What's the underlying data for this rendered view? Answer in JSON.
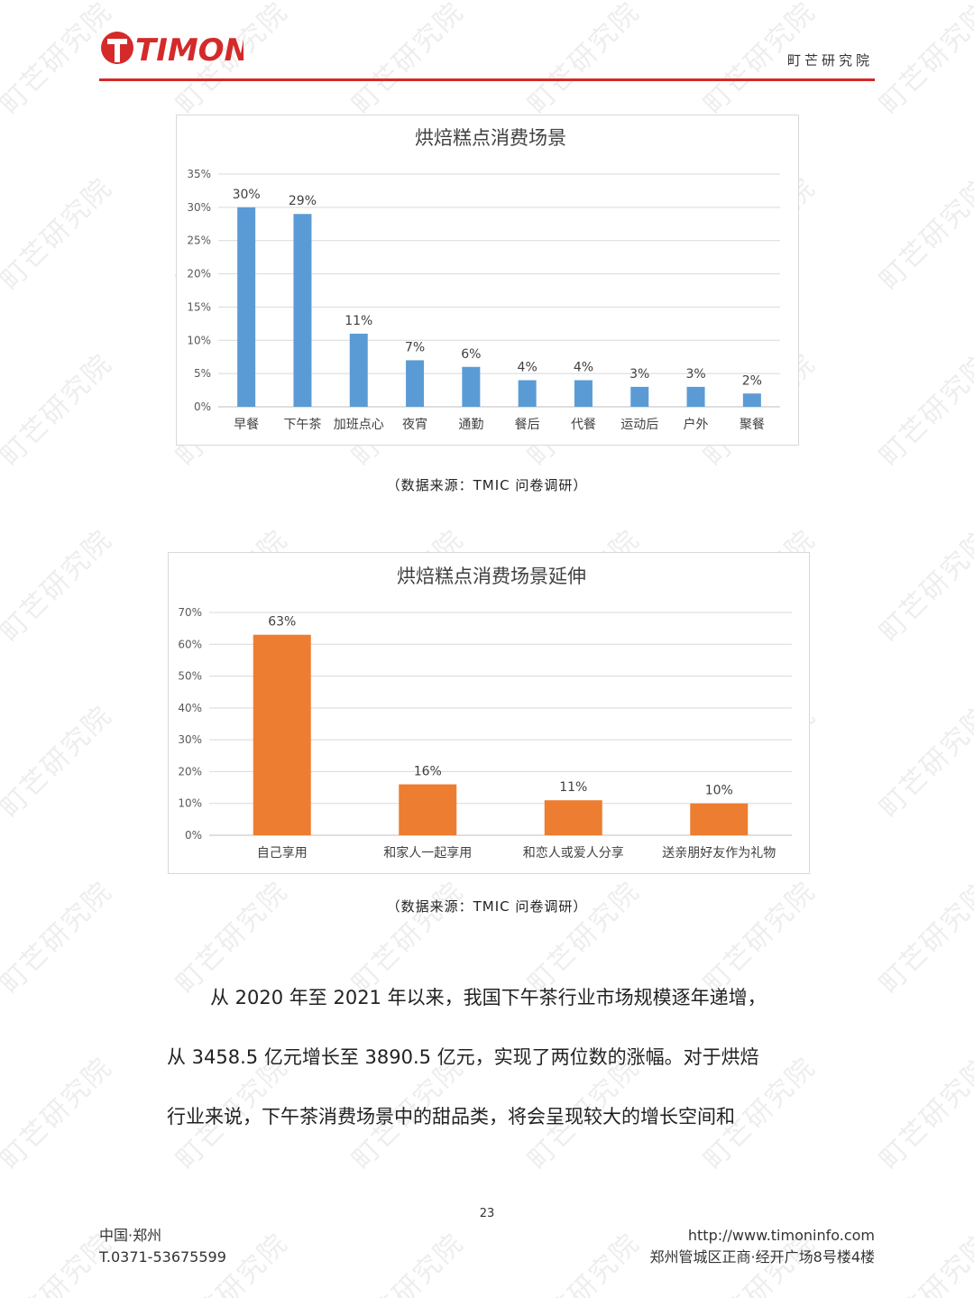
{
  "header": {
    "logo_text": "TIMON",
    "org_name": "町芒研究院",
    "brand_color": "#d42a2a"
  },
  "watermark_text": "町芒研究院",
  "chart_data": [
    {
      "type": "bar",
      "title": "烘焙糕点消费场景",
      "categories": [
        "早餐",
        "下午茶",
        "加班点心",
        "夜宵",
        "通勤",
        "餐后",
        "代餐",
        "运动后",
        "户外",
        "聚餐"
      ],
      "values": [
        30,
        29,
        11,
        7,
        6,
        4,
        4,
        3,
        3,
        2
      ],
      "value_labels": [
        "30%",
        "29%",
        "11%",
        "7%",
        "6%",
        "4%",
        "4%",
        "3%",
        "3%",
        "2%"
      ],
      "ylim": [
        0,
        35
      ],
      "yticks": [
        "0%",
        "5%",
        "10%",
        "15%",
        "20%",
        "25%",
        "30%",
        "35%"
      ],
      "grid": true,
      "color": "#5b9bd5"
    },
    {
      "type": "bar",
      "title": "烘焙糕点消费场景延伸",
      "categories": [
        "自己享用",
        "和家人一起享用",
        "和恋人或爱人分享",
        "送亲朋好友作为礼物"
      ],
      "values": [
        63,
        16,
        11,
        10
      ],
      "value_labels": [
        "63%",
        "16%",
        "11%",
        "10%"
      ],
      "ylim": [
        0,
        70
      ],
      "yticks": [
        "0%",
        "10%",
        "20%",
        "30%",
        "40%",
        "50%",
        "60%",
        "70%"
      ],
      "grid": true,
      "color": "#ed7d31"
    }
  ],
  "sources": {
    "chart1": "（数据来源：TMIC 问卷调研）",
    "chart2": "（数据来源：TMIC 问卷调研）"
  },
  "body": {
    "line1": "从 2020 年至 2021 年以来，我国下午茶行业市场规模逐年递增，",
    "line2": "从 3458.5 亿元增长至 3890.5 亿元，实现了两位数的涨幅。对于烘焙",
    "line3": "行业来说，下午茶消费场景中的甜品类，将会呈现较大的增长空间和"
  },
  "page_number": "23",
  "footer": {
    "left_line1": "中国·郑州",
    "left_line2": "T.0371-53675599",
    "right_line1": "http://www.timoninfo.com",
    "right_line2": "郑州管城区正商·经开广场8号楼4楼"
  }
}
